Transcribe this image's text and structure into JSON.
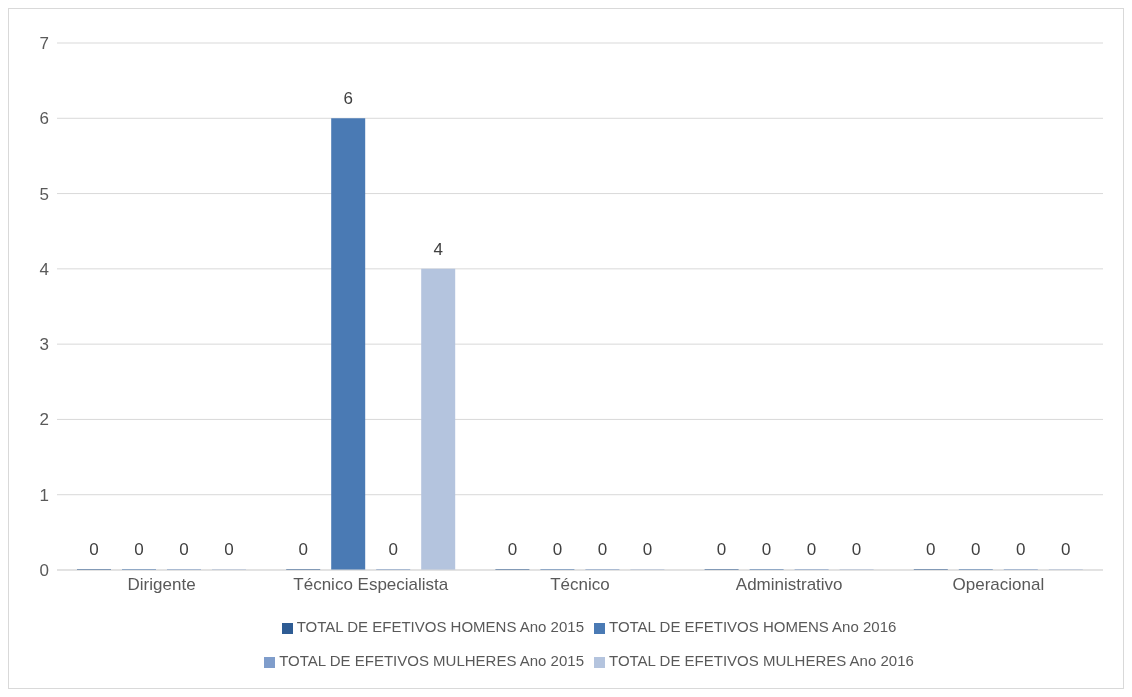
{
  "chart_data": {
    "type": "bar",
    "categories": [
      "Dirigente",
      "Técnico Especialista",
      "Técnico",
      "Administrativo",
      "Operacional"
    ],
    "series": [
      {
        "name": "TOTAL DE EFETIVOS HOMENS Ano 2015",
        "color": "#2e5c94",
        "values": [
          0,
          0,
          0,
          0,
          0
        ]
      },
      {
        "name": "TOTAL DE EFETIVOS HOMENS Ano 2016",
        "color": "#4a7ab4",
        "values": [
          0,
          6,
          0,
          0,
          0
        ]
      },
      {
        "name": "TOTAL DE EFETIVOS MULHERES Ano 2015",
        "color": "#7f9dcb",
        "values": [
          0,
          0,
          0,
          0,
          0
        ]
      },
      {
        "name": "TOTAL DE EFETIVOS MULHERES Ano 2016",
        "color": "#b4c4de",
        "values": [
          0,
          4,
          0,
          0,
          0
        ]
      }
    ],
    "ylim": [
      0,
      7
    ],
    "yticks": [
      0,
      1,
      2,
      3,
      4,
      5,
      6,
      7
    ],
    "grid": "y",
    "legend": "bottom",
    "data_labels": true
  }
}
